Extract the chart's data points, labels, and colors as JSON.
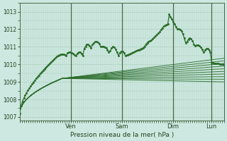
{
  "xlabel": "Pression niveau de la mer( hPa )",
  "xlim": [
    0,
    96
  ],
  "ylim": [
    1006.8,
    1013.5
  ],
  "yticks": [
    1007,
    1008,
    1009,
    1010,
    1011,
    1012,
    1013
  ],
  "day_ticks": [
    24,
    48,
    72,
    90
  ],
  "day_labels": [
    "Ven",
    "Sam",
    "Dim",
    "Lun"
  ],
  "bg_color": "#cde8e0",
  "grid_color": "#aaccbb",
  "line_color": "#2d6e2d"
}
